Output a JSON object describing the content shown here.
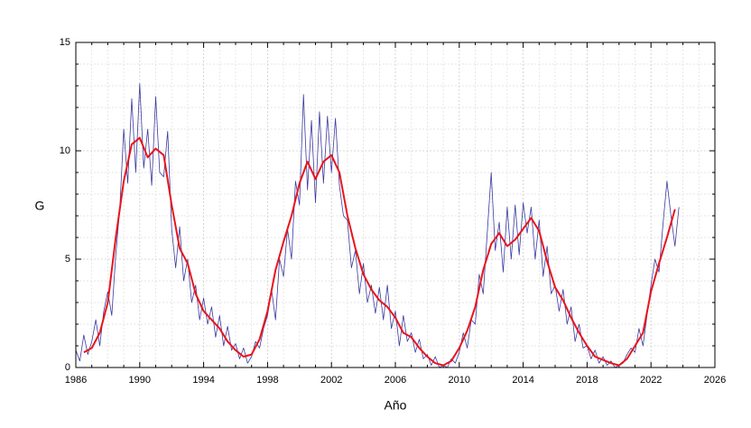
{
  "chart_data": {
    "type": "line",
    "xlabel": "Año",
    "ylabel": "G",
    "xlim": [
      1986,
      2026
    ],
    "xticks": [
      1986,
      1990,
      1994,
      1998,
      2002,
      2006,
      2010,
      2014,
      2018,
      2022,
      2026
    ],
    "ylim": [
      0,
      15
    ],
    "yticks": [
      0,
      5,
      10,
      15
    ],
    "grid": true,
    "series": [
      {
        "color": "#3a3aa0",
        "width": 0.8,
        "x": [
          1986,
          1986.25,
          1986.5,
          1986.75,
          1987,
          1987.25,
          1987.5,
          1987.75,
          1988,
          1988.25,
          1988.5,
          1988.75,
          1989,
          1989.25,
          1989.5,
          1989.75,
          1990,
          1990.25,
          1990.5,
          1990.75,
          1991,
          1991.25,
          1991.5,
          1991.75,
          1992,
          1992.25,
          1992.5,
          1992.75,
          1993,
          1993.25,
          1993.5,
          1993.75,
          1994,
          1994.25,
          1994.5,
          1994.75,
          1995,
          1995.25,
          1995.5,
          1995.75,
          1996,
          1996.25,
          1996.5,
          1996.75,
          1997,
          1997.25,
          1997.5,
          1997.75,
          1998,
          1998.25,
          1998.5,
          1998.75,
          1999,
          1999.25,
          1999.5,
          1999.75,
          2000,
          2000.25,
          2000.5,
          2000.75,
          2001,
          2001.25,
          2001.5,
          2001.75,
          2002,
          2002.25,
          2002.5,
          2002.75,
          2003,
          2003.25,
          2003.5,
          2003.75,
          2004,
          2004.25,
          2004.5,
          2004.75,
          2005,
          2005.25,
          2005.5,
          2005.75,
          2006,
          2006.25,
          2006.5,
          2006.75,
          2007,
          2007.25,
          2007.5,
          2007.75,
          2008,
          2008.25,
          2008.5,
          2008.75,
          2009,
          2009.25,
          2009.5,
          2009.75,
          2010,
          2010.25,
          2010.5,
          2010.75,
          2011,
          2011.25,
          2011.5,
          2011.75,
          2012,
          2012.25,
          2012.5,
          2012.75,
          2013,
          2013.25,
          2013.5,
          2013.75,
          2014,
          2014.25,
          2014.5,
          2014.75,
          2015,
          2015.25,
          2015.5,
          2015.75,
          2016,
          2016.25,
          2016.5,
          2016.75,
          2017,
          2017.25,
          2017.5,
          2017.75,
          2018,
          2018.25,
          2018.5,
          2018.75,
          2019,
          2019.25,
          2019.5,
          2019.75,
          2020,
          2020.25,
          2020.5,
          2020.75,
          2021,
          2021.25,
          2021.5,
          2021.75,
          2022,
          2022.25,
          2022.5,
          2022.75,
          2023,
          2023.25,
          2023.5,
          2023.75
        ],
        "values": [
          0.8,
          0.3,
          1.5,
          0.6,
          1.2,
          2.2,
          1.0,
          2.6,
          3.5,
          2.4,
          5.2,
          7.3,
          11.0,
          8.5,
          12.4,
          9.0,
          13.1,
          9.2,
          11.0,
          8.4,
          12.5,
          9.0,
          8.8,
          10.9,
          6.4,
          4.6,
          6.5,
          4.0,
          5.0,
          3.0,
          3.8,
          2.2,
          3.2,
          2.0,
          2.8,
          1.4,
          2.4,
          1.0,
          1.9,
          0.8,
          1.1,
          0.4,
          0.9,
          0.2,
          0.5,
          1.2,
          0.9,
          1.8,
          2.4,
          3.6,
          2.2,
          5.0,
          4.2,
          6.4,
          5.0,
          8.6,
          7.5,
          12.6,
          8.2,
          11.4,
          7.6,
          11.8,
          8.5,
          11.6,
          9.0,
          11.5,
          8.4,
          7.0,
          6.8,
          4.6,
          5.4,
          3.4,
          4.8,
          3.0,
          3.8,
          2.5,
          3.7,
          2.2,
          3.8,
          1.8,
          2.6,
          1.0,
          2.4,
          1.2,
          1.6,
          0.7,
          1.3,
          0.4,
          0.6,
          0.1,
          0.5,
          0.0,
          0.1,
          0.0,
          0.4,
          0.2,
          0.7,
          1.6,
          0.9,
          2.2,
          2.0,
          4.3,
          3.4,
          6.2,
          9.0,
          5.4,
          6.7,
          4.4,
          7.4,
          5.0,
          7.5,
          5.2,
          7.6,
          6.2,
          7.4,
          5.0,
          6.8,
          4.2,
          5.6,
          3.4,
          3.8,
          2.6,
          3.6,
          2.0,
          2.8,
          1.2,
          2.0,
          0.9,
          1.0,
          0.4,
          0.8,
          0.2,
          0.5,
          0.1,
          0.3,
          0.0,
          0.1,
          0.2,
          0.6,
          0.9,
          0.7,
          1.8,
          1.0,
          2.4,
          3.8,
          5.0,
          4.4,
          6.6,
          8.6,
          7.0,
          5.6,
          7.4
        ]
      },
      {
        "color": "#e8141c",
        "width": 2,
        "x": [
          1986.5,
          1987,
          1987.5,
          1988,
          1988.5,
          1989,
          1989.5,
          1990,
          1990.5,
          1991,
          1991.5,
          1992,
          1992.5,
          1993,
          1993.5,
          1994,
          1994.5,
          1995,
          1995.5,
          1996,
          1996.5,
          1997,
          1997.5,
          1998,
          1998.5,
          1999,
          1999.5,
          2000,
          2000.5,
          2001,
          2001.5,
          2002,
          2002.5,
          2003,
          2003.5,
          2004,
          2004.5,
          2005,
          2005.5,
          2006,
          2006.5,
          2007,
          2007.5,
          2008,
          2008.5,
          2009,
          2009.5,
          2010,
          2010.5,
          2011,
          2011.5,
          2012,
          2012.5,
          2013,
          2013.5,
          2014,
          2014.5,
          2015,
          2015.5,
          2016,
          2016.5,
          2017,
          2017.5,
          2018,
          2018.5,
          2019,
          2019.5,
          2020,
          2020.5,
          2021,
          2021.5,
          2022,
          2022.5,
          2023,
          2023.5
        ],
        "values": [
          0.7,
          0.9,
          1.6,
          3.0,
          6.0,
          8.6,
          10.3,
          10.6,
          9.7,
          10.1,
          9.8,
          7.5,
          5.5,
          4.8,
          3.4,
          2.6,
          2.2,
          1.8,
          1.2,
          0.8,
          0.5,
          0.6,
          1.3,
          2.6,
          4.5,
          5.8,
          7.0,
          8.5,
          9.5,
          8.7,
          9.5,
          9.8,
          9.0,
          7.0,
          5.5,
          4.3,
          3.6,
          3.1,
          2.8,
          2.3,
          1.6,
          1.4,
          0.9,
          0.5,
          0.2,
          0.1,
          0.3,
          0.9,
          1.7,
          2.8,
          4.5,
          5.7,
          6.2,
          5.6,
          5.9,
          6.4,
          6.9,
          6.3,
          4.9,
          3.7,
          3.1,
          2.3,
          1.6,
          1.0,
          0.5,
          0.35,
          0.2,
          0.1,
          0.4,
          1.0,
          1.6,
          3.5,
          4.8,
          6.0,
          7.3
        ]
      }
    ]
  }
}
